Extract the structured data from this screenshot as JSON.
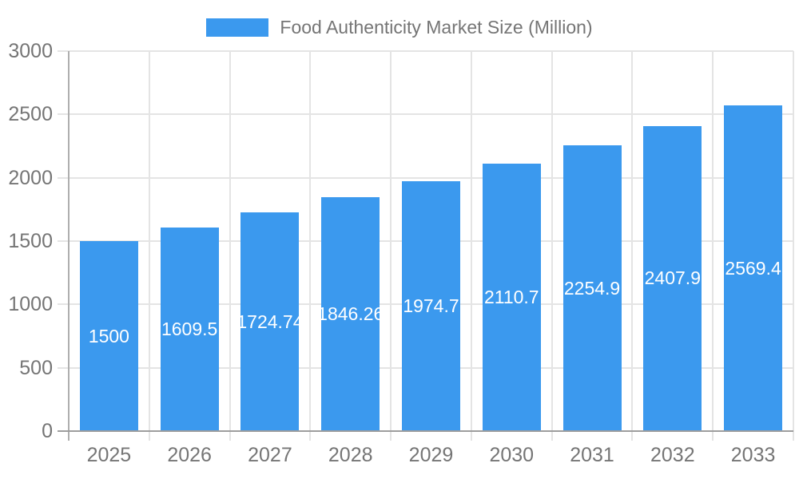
{
  "chart_data": {
    "type": "bar",
    "title": "Food Authenticity Market Size (Million)",
    "legend": {
      "label": "Food Authenticity Market Size (Million)",
      "position": "top"
    },
    "categories": [
      "2025",
      "2026",
      "2027",
      "2028",
      "2029",
      "2030",
      "2031",
      "2032",
      "2033"
    ],
    "series": [
      {
        "name": "Food Authenticity Market Size (Million)",
        "values": [
          1500,
          1609.5,
          1724.74,
          1846.26,
          1974.7,
          2110.7,
          2254.9,
          2407.9,
          2569.4
        ]
      }
    ],
    "bar_labels": [
      "1500",
      "1609.5",
      "1724.74",
      "1846.26",
      "1974.7",
      "2110.7",
      "2254.9",
      "2407.9",
      "2569.4"
    ],
    "xlabel": "",
    "ylabel": "",
    "ylim": [
      0,
      3000
    ],
    "y_ticks": [
      0,
      500,
      1000,
      1500,
      2000,
      2500,
      3000
    ],
    "y_tick_labels": [
      "0",
      "500",
      "1000",
      "1500",
      "2000",
      "2500",
      "3000"
    ],
    "grid": true,
    "colors": {
      "bar": "#3B99EE",
      "bar_value_text": "#ffffff",
      "axis_text": "#757575",
      "gridline": "#e4e4e4",
      "axis_line": "#aeaeae",
      "zero_line": "#9e9e9e",
      "background": "#ffffff"
    }
  }
}
